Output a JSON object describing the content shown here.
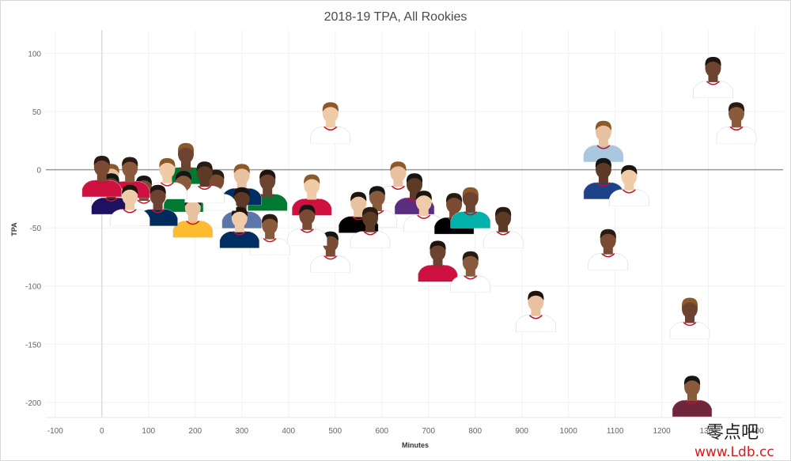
{
  "chart_data": {
    "type": "scatter",
    "title": "2018-19 TPA, All Rookies",
    "xlabel": "Minutes",
    "ylabel": "TPA",
    "xlim": [
      -120,
      1460
    ],
    "ylim": [
      -213,
      120
    ],
    "xticks": [
      -100,
      0,
      100,
      200,
      300,
      400,
      500,
      600,
      700,
      800,
      900,
      1000,
      1100,
      1200,
      1300,
      1400
    ],
    "yticks": [
      100,
      50,
      0,
      -50,
      -100,
      -150,
      -200
    ],
    "tick_labels_x": [
      "-100",
      "0",
      "100",
      "200",
      "300",
      "400",
      "500",
      "600",
      "700",
      "800",
      "900",
      "1000",
      "1100",
      "1200",
      "1300",
      "1400"
    ],
    "tick_labels_y": [
      "100",
      "50",
      "0",
      "-50",
      "-100",
      "-150",
      "-200"
    ],
    "grid": true,
    "marker": "player headshot",
    "points": [
      {
        "x": 1310,
        "y": 82,
        "jersey": "#ffffff"
      },
      {
        "x": 1360,
        "y": 43,
        "jersey": "#ffffff"
      },
      {
        "x": 1075,
        "y": 27,
        "jersey": "#a8c8e0"
      },
      {
        "x": 1075,
        "y": -5,
        "jersey": "#1d428a"
      },
      {
        "x": 1130,
        "y": -11,
        "jersey": "#ffffff"
      },
      {
        "x": 1085,
        "y": -66,
        "jersey": "#ffffff"
      },
      {
        "x": 1260,
        "y": -125,
        "jersey": "#ffffff"
      },
      {
        "x": 1265,
        "y": -192,
        "jersey": "#6f263d"
      },
      {
        "x": 930,
        "y": -119,
        "jersey": "#ffffff"
      },
      {
        "x": 860,
        "y": -47,
        "jersey": "#ffffff"
      },
      {
        "x": 490,
        "y": 43,
        "jersey": "#ffffff"
      },
      {
        "x": 490,
        "y": -68,
        "jersey": "#ffffff"
      },
      {
        "x": 720,
        "y": -76,
        "jersey": "#ce1141"
      },
      {
        "x": 790,
        "y": -85,
        "jersey": "#ffffff"
      },
      {
        "x": 635,
        "y": -8,
        "jersey": "#ffffff"
      },
      {
        "x": 670,
        "y": -18,
        "jersey": "#5a2d81"
      },
      {
        "x": 690,
        "y": -33,
        "jersey": "#ffffff"
      },
      {
        "x": 755,
        "y": -35,
        "jersey": "#000000"
      },
      {
        "x": 790,
        "y": -30,
        "jersey": "#00b2a9"
      },
      {
        "x": 590,
        "y": -29,
        "jersey": "#ffffff"
      },
      {
        "x": 550,
        "y": -34,
        "jersey": "#000000"
      },
      {
        "x": 575,
        "y": -47,
        "jersey": "#ffffff"
      },
      {
        "x": 450,
        "y": -19,
        "jersey": "#ce1141"
      },
      {
        "x": 440,
        "y": -45,
        "jersey": "#ffffff"
      },
      {
        "x": 355,
        "y": -15,
        "jersey": "#007a33"
      },
      {
        "x": 360,
        "y": -53,
        "jersey": "#ffffff"
      },
      {
        "x": 300,
        "y": -10,
        "jersey": "#002d62"
      },
      {
        "x": 300,
        "y": -30,
        "jersey": "#5d76a9"
      },
      {
        "x": 295,
        "y": -47,
        "jersey": "#002d62"
      },
      {
        "x": 245,
        "y": -15,
        "jersey": "#ffffff"
      },
      {
        "x": 180,
        "y": 8,
        "jersey": "#007a33"
      },
      {
        "x": 175,
        "y": -16,
        "jersey": "#007a33"
      },
      {
        "x": 195,
        "y": -38,
        "jersey": "#fdbb30"
      },
      {
        "x": 220,
        "y": -8,
        "jersey": "#ffffff"
      },
      {
        "x": 140,
        "y": -5,
        "jersey": "#ffffff"
      },
      {
        "x": 90,
        "y": -20,
        "jersey": "#ffffff"
      },
      {
        "x": 120,
        "y": -28,
        "jersey": "#002b5c"
      },
      {
        "x": 60,
        "y": -4,
        "jersey": "#ce1141"
      },
      {
        "x": 20,
        "y": -10,
        "jersey": "#ffffff"
      },
      {
        "x": 20,
        "y": -18,
        "jersey": "#1d1160"
      },
      {
        "x": 60,
        "y": -28,
        "jersey": "#ffffff"
      },
      {
        "x": 0,
        "y": -3,
        "jersey": "#ce1141"
      }
    ]
  },
  "watermark": {
    "line1": "零点吧",
    "line2": "www.Ldb.cc"
  }
}
